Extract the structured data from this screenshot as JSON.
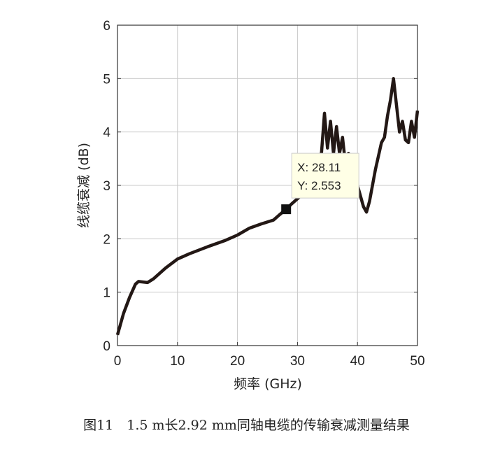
{
  "chart_data": {
    "type": "line",
    "xlabel": "频率 (GHz)",
    "ylabel": "线缆衰减 (dB)",
    "xlim": [
      0,
      50
    ],
    "ylim": [
      0,
      6
    ],
    "xticks": [
      "0",
      "10",
      "20",
      "30",
      "40",
      "50"
    ],
    "yticks": [
      "0",
      "1",
      "2",
      "3",
      "4",
      "5",
      "6"
    ],
    "grid": true,
    "line_color": "#231815",
    "series": [
      {
        "name": "attenuation",
        "x": [
          0,
          0.5,
          1,
          2,
          3,
          3.5,
          5,
          6,
          8,
          10,
          12,
          15,
          18,
          20,
          22,
          24,
          26,
          27,
          28.11,
          29,
          30,
          31,
          32,
          33,
          33.5,
          34,
          34.5,
          35,
          35.5,
          36,
          36.5,
          37,
          37.5,
          38,
          38.5,
          39,
          40,
          41,
          41.5,
          42,
          43,
          44,
          44.5,
          45,
          45.5,
          46,
          46.5,
          47,
          47.5,
          48,
          48.5,
          49,
          49.5,
          50
        ],
        "y": [
          0.2,
          0.4,
          0.6,
          0.9,
          1.15,
          1.2,
          1.18,
          1.25,
          1.45,
          1.62,
          1.72,
          1.85,
          1.97,
          2.07,
          2.2,
          2.28,
          2.35,
          2.45,
          2.553,
          2.65,
          2.75,
          2.85,
          3.2,
          3.3,
          3.55,
          3.6,
          4.35,
          3.7,
          4.2,
          3.6,
          4.1,
          3.6,
          3.9,
          3.4,
          3.6,
          3.5,
          3.0,
          2.6,
          2.5,
          2.7,
          3.3,
          3.8,
          3.9,
          4.3,
          4.6,
          5.0,
          4.5,
          4.0,
          4.2,
          3.85,
          3.8,
          4.2,
          3.9,
          4.4
        ]
      }
    ],
    "datatip": {
      "x": 28.11,
      "y": 2.553,
      "x_label": "X: 28.11",
      "y_label": "Y: 2.553"
    }
  },
  "caption": "图11　1.5 m长2.92 mm同轴电缆的传输衰减测量结果"
}
